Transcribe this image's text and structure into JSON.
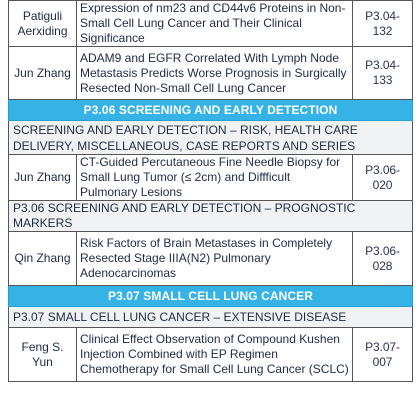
{
  "rows": [
    {
      "kind": "entry",
      "author": "Patiguli Aerxiding",
      "title": "Expression of nm23 and CD44v6 Proteins in Non-Small Cell Lung Cancer and Their Clinical Significance",
      "code": "P3.04-132"
    },
    {
      "kind": "entry",
      "author": "Jun Zhang",
      "title": "ADAM9 and EGFR Correlated With Lymph Node Metastasis Predicts Worse Prognosis in Surgically Resected Non-Small Cell Lung Cancer",
      "code": "P3.04-133"
    },
    {
      "kind": "banner",
      "text": "P3.06 SCREENING AND EARLY DETECTION"
    },
    {
      "kind": "subhead",
      "text": "SCREENING AND EARLY DETECTION – RISK, HEALTH CARE DELIVERY, MISCELLANEOUS, CASE REPORTS AND SERIES"
    },
    {
      "kind": "entry",
      "author": "Jun Zhang",
      "title": "CT-Guided Percutaneous Fine Needle Biopsy for Small Lung Tumor (≤ 2cm) and Diffficult Pulmonary Lesions",
      "code": "P3.06-020"
    },
    {
      "kind": "subhead",
      "text": "P3.06 SCREENING AND EARLY DETECTION – PROGNOSTIC MARKERS"
    },
    {
      "kind": "entry",
      "author": "Qin Zhang",
      "title": "Risk Factors of Brain Metastases in Completely Resected Stage IIIA(N2) Pulmonary Adenocarcinomas",
      "code": "P3.06-028"
    },
    {
      "kind": "banner",
      "text": "P3.07 SMALL CELL LUNG CANCER"
    },
    {
      "kind": "subhead",
      "text": "P3.07 SMALL CELL LUNG CANCER – EXTENSIVE DISEASE"
    },
    {
      "kind": "entry",
      "author": "Feng S. Yun",
      "title": "Clinical Effect Observation of Compound Kushen Injection Combined with EP Regimen Chemotherapy for Small Cell Lung Cancer (SCLC)",
      "code": "P3.07-007"
    }
  ]
}
